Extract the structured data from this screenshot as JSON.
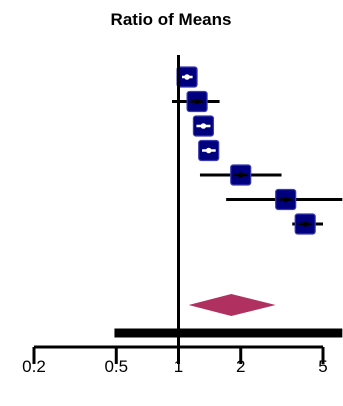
{
  "chart_data": {
    "type": "forest",
    "title": "Ratio of Means",
    "x_scale": "log",
    "xlim": [
      0.2,
      5
    ],
    "reference_line": 1,
    "ticks": [
      {
        "value": 0.2,
        "label": "0.2"
      },
      {
        "value": 0.5,
        "label": "0.5"
      },
      {
        "value": 1,
        "label": "1"
      },
      {
        "value": 2,
        "label": "2"
      },
      {
        "value": 5,
        "label": "5"
      }
    ],
    "studies": [
      {
        "estimate": 1.1,
        "ci": [
          1.04,
          1.17
        ]
      },
      {
        "estimate": 1.23,
        "ci": [
          0.93,
          1.58
        ]
      },
      {
        "estimate": 1.32,
        "ci": [
          1.2,
          1.45
        ]
      },
      {
        "estimate": 1.4,
        "ci": [
          1.3,
          1.52
        ]
      },
      {
        "estimate": 2.0,
        "ci": [
          1.27,
          3.15
        ]
      },
      {
        "estimate": 3.3,
        "ci": [
          1.7,
          6.2
        ]
      },
      {
        "estimate": 4.1,
        "ci": [
          3.55,
          5.0
        ]
      }
    ],
    "summary": {
      "estimate": 1.8,
      "ci": [
        1.12,
        2.95
      ]
    },
    "prediction_interval": [
      0.49,
      6.2
    ],
    "grid": false,
    "legend": "none",
    "colors": {
      "study_marker": "#00007f",
      "study_marker_border": "#3a3ab0",
      "summary_diamond": "#b03060",
      "ci_line": "#000000",
      "axis": "#000000"
    }
  }
}
